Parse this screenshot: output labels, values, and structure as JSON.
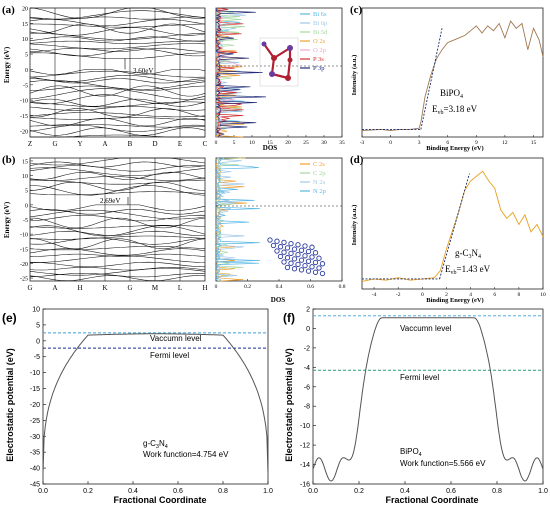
{
  "colors": {
    "axis": "#222222",
    "band": "#111111",
    "xps": "#a07850",
    "xps2": "#e8a020",
    "dash": "#1a2a6c",
    "vac_line": "#3aa0d8",
    "fermi_line_e": "#1a2a9c",
    "fermi_line_f": "#2aa070",
    "potential": "#555555",
    "dos_bi6s": "#5bb8e6",
    "dos_bi6p": "#9fc7e8",
    "dos_bi5d": "#a6d9a0",
    "dos_o2s": "#f0a030",
    "dos_o2p": "#e8a8c8",
    "dos_p3s": "#d03030",
    "dos_p3p": "#1f2a78",
    "dos_c2s": "#f0a030",
    "dos_c2p": "#a6d9a0",
    "dos_n2s": "#9fc7e8",
    "dos_n2p": "#5bb8e6",
    "crystal": "#b02030",
    "crystal2": "#6a3aa0",
    "mol": "#2a3aa0"
  },
  "chart_data": [
    {
      "panel_label": "(a)",
      "type": "line",
      "kind": "band-structure",
      "ylabel": "Energy (eV)",
      "kpoints": [
        "Z",
        "G",
        "Y",
        "A",
        "B",
        "D",
        "E",
        "C"
      ],
      "yticks": [
        20,
        15,
        10,
        5,
        0,
        -5,
        -10,
        -15,
        -20
      ],
      "ylim": [
        -22,
        20
      ],
      "gap_label": "3.60eV"
    },
    {
      "panel_label": "",
      "type": "line",
      "kind": "dos",
      "xlabel": "DOS",
      "xticks": [
        0,
        5,
        10,
        15,
        20,
        25,
        30,
        35
      ],
      "xlim": [
        0,
        35
      ],
      "legend": [
        "Bi 6s",
        "Bi 6p",
        "Bi 5d",
        "O 2s",
        "O 2p",
        "P 3s",
        "P 3p"
      ]
    },
    {
      "panel_label": "(c)",
      "type": "line",
      "xlabel": "Binding Energy (eV)",
      "ylabel": "Intensity (a.u.)",
      "xticks": [
        -3,
        0,
        3,
        6,
        9,
        12,
        15
      ],
      "xlim": [
        -3,
        16
      ],
      "compound_label": "BiPO",
      "compound_sub": "4",
      "evb_label": "E",
      "evb_sub": "vb",
      "evb_value": "=3.18 eV",
      "series": [
        {
          "x": [
            -3,
            -1,
            0,
            1,
            2,
            3,
            3.2,
            3.6,
            4.2,
            4.8,
            5.4,
            6,
            6.6,
            7.2,
            7.8,
            8.4,
            9,
            9.6,
            10.2,
            10.8,
            11.4,
            12,
            12.6,
            13.2,
            13.8,
            14.4,
            15,
            15.6,
            16
          ],
          "y": [
            0.02,
            0.03,
            0.02,
            0.03,
            0.03,
            0.04,
            0.1,
            0.3,
            0.48,
            0.62,
            0.7,
            0.76,
            0.78,
            0.8,
            0.82,
            0.86,
            0.9,
            0.84,
            0.9,
            0.86,
            0.92,
            0.8,
            0.94,
            0.88,
            0.92,
            0.7,
            0.88,
            0.78,
            0.64
          ]
        }
      ]
    },
    {
      "panel_label": "(b)",
      "type": "line",
      "kind": "band-structure",
      "ylabel": "Energy (eV)",
      "kpoints": [
        "G",
        "A",
        "H",
        "K",
        "G",
        "M",
        "L",
        "H"
      ],
      "yticks": [
        15,
        10,
        5,
        0,
        -5,
        -10,
        -15,
        -20,
        -25
      ],
      "ylim": [
        -26,
        16
      ],
      "gap_label": "2.69eV"
    },
    {
      "panel_label": "",
      "type": "line",
      "kind": "dos",
      "xlabel": "DOS",
      "xticks": [
        0,
        0.2,
        0.4,
        0.6,
        0.8
      ],
      "xlim": [
        0,
        0.8
      ],
      "legend": [
        "C 2s",
        "C 2p",
        "N 2s",
        "N 2p"
      ]
    },
    {
      "panel_label": "(d)",
      "type": "line",
      "xlabel": "Binding Energy (eV)",
      "ylabel": "Intensity (a.u.)",
      "xticks": [
        -4,
        -2,
        0,
        2,
        4,
        6,
        8,
        10
      ],
      "xlim": [
        -5,
        10
      ],
      "compound_label": "g-C",
      "compound_sub1": "3",
      "compound_mid": "N",
      "compound_sub2": "4",
      "evb_label": "E",
      "evb_sub": "vb",
      "evb_value": "=1.43 eV",
      "series": [
        {
          "x": [
            -5,
            -4,
            -3,
            -2,
            -1,
            0,
            1,
            1.5,
            2,
            2.5,
            3,
            3.5,
            4,
            4.5,
            5,
            5.5,
            6,
            6.5,
            7,
            7.5,
            8,
            8.5,
            9,
            9.5,
            10
          ],
          "y": [
            0.03,
            0.05,
            0.04,
            0.06,
            0.04,
            0.05,
            0.06,
            0.12,
            0.3,
            0.45,
            0.6,
            0.78,
            0.86,
            0.9,
            0.94,
            0.86,
            0.8,
            0.62,
            0.55,
            0.6,
            0.5,
            0.58,
            0.44,
            0.5,
            0.4
          ]
        }
      ]
    },
    {
      "panel_label": "(e)",
      "type": "line",
      "xlabel": "Fractional Coordinate",
      "ylabel": "Electrostatic potential (eV)",
      "xticks": [
        "0.0",
        "0.2",
        "0.4",
        "0.6",
        "0.8",
        "1.0"
      ],
      "yticks": [
        "10",
        "5",
        "0",
        "-5",
        "-10",
        "-15",
        "-20",
        "-25",
        "-30",
        "-35",
        "-40",
        "-45"
      ],
      "ylim": [
        -45,
        10
      ],
      "vacuum_label": "Vaccumn level",
      "fermi_label": "Fermi level",
      "vacuum_level": 2.5,
      "fermi_level": -2.3,
      "material": "g-C",
      "material_sub1": "3",
      "material_mid": "N",
      "material_sub2": "4",
      "work_function": "Work function=4.754 eV"
    },
    {
      "panel_label": "(f)",
      "type": "line",
      "xlabel": "Fractional Coordinate",
      "ylabel": "Electrostatic potential (eV)",
      "xticks": [
        "0.0",
        "0.2",
        "0.4",
        "0.6",
        "0.8",
        "1.0"
      ],
      "yticks": [
        "2",
        "0",
        "-2",
        "-4",
        "-6",
        "-8",
        "-10",
        "-12",
        "-14",
        "-16"
      ],
      "ylim": [
        -16,
        2
      ],
      "vacuum_label": "Vaccumn level",
      "fermi_label": "Fermi level",
      "vacuum_level": 1.3,
      "fermi_level": -4.3,
      "material": "BiPO",
      "material_sub": "4",
      "work_function": "Work function=5.566 eV"
    }
  ]
}
